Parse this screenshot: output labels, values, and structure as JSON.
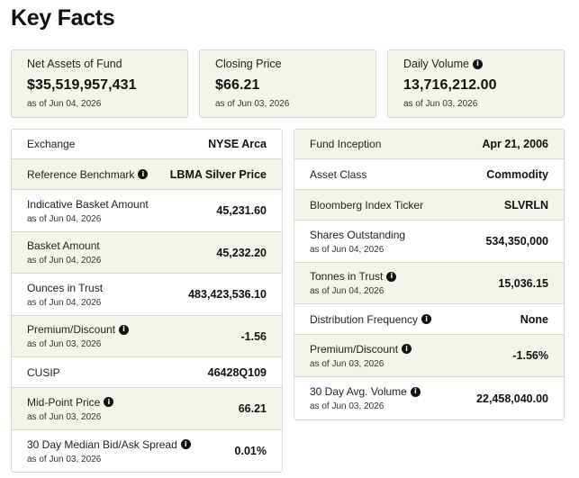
{
  "page_title": "Key Facts",
  "cards": [
    {
      "label": "Net Assets of Fund",
      "value": "$35,519,957,431",
      "date": "as of Jun 04, 2026",
      "info": false
    },
    {
      "label": "Closing Price",
      "value": "$66.21",
      "date": "as of Jun 03, 2026",
      "info": false
    },
    {
      "label": "Daily Volume",
      "value": "13,716,212.00",
      "date": "as of Jun 03, 2026",
      "info": true
    }
  ],
  "left_table": [
    {
      "label": "Exchange",
      "value": "NYSE Arca",
      "date": "",
      "info": false
    },
    {
      "label": "Reference Benchmark",
      "value": "LBMA Silver Price",
      "date": "",
      "info": true
    },
    {
      "label": "Indicative Basket Amount",
      "value": "45,231.60",
      "date": "as of Jun 04, 2026",
      "info": false
    },
    {
      "label": "Basket Amount",
      "value": "45,232.20",
      "date": "as of Jun 04, 2026",
      "info": false
    },
    {
      "label": "Ounces in Trust",
      "value": "483,423,536.10",
      "date": "as of Jun 04, 2026",
      "info": false
    },
    {
      "label": "Premium/Discount",
      "value": "-1.56",
      "date": "as of Jun 03, 2026",
      "info": true
    },
    {
      "label": "CUSIP",
      "value": "46428Q109",
      "date": "",
      "info": false
    },
    {
      "label": "Mid-Point Price",
      "value": "66.21",
      "date": "as of Jun 03, 2026",
      "info": true
    },
    {
      "label": "30 Day Median Bid/Ask Spread",
      "value": "0.01%",
      "date": "as of Jun 03, 2026",
      "info": true
    }
  ],
  "right_table": [
    {
      "label": "Fund Inception",
      "value": "Apr 21, 2006",
      "date": "",
      "info": false
    },
    {
      "label": "Asset Class",
      "value": "Commodity",
      "date": "",
      "info": false
    },
    {
      "label": "Bloomberg Index Ticker",
      "value": "SLVRLN",
      "date": "",
      "info": false
    },
    {
      "label": "Shares Outstanding",
      "value": "534,350,000",
      "date": "as of Jun 04, 2026",
      "info": false
    },
    {
      "label": "Tonnes in Trust",
      "value": "15,036.15",
      "date": "as of Jun 04, 2026",
      "info": true
    },
    {
      "label": "Distribution Frequency",
      "value": "None",
      "date": "",
      "info": true
    },
    {
      "label": "Premium/Discount",
      "value": "-1.56%",
      "date": "as of Jun 03, 2026",
      "info": true
    },
    {
      "label": "30 Day Avg. Volume",
      "value": "22,458,040.00",
      "date": "as of Jun 03, 2026",
      "info": true
    }
  ],
  "info_glyph": "i"
}
